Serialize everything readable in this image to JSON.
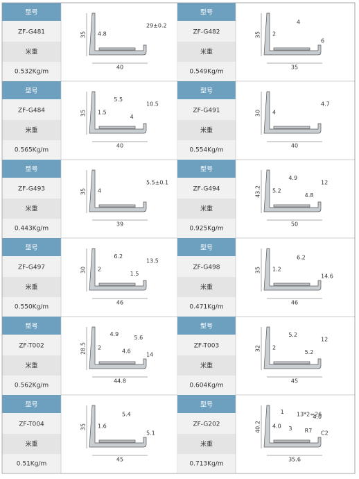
{
  "labels": {
    "model_header": "型号",
    "weight_header": "米重"
  },
  "items": [
    {
      "model": "ZF-G481",
      "weight": "0.532Kg/m",
      "dims": [
        "35",
        "4.8",
        "29±0.2",
        "40"
      ]
    },
    {
      "model": "ZF-G482",
      "weight": "0.549Kg/m",
      "dims": [
        "35",
        "2",
        "4",
        "6",
        "35"
      ]
    },
    {
      "model": "ZF-G484",
      "weight": "0.565Kg/m",
      "dims": [
        "35",
        "1.5",
        "5.5",
        "4",
        "10.5",
        "40"
      ]
    },
    {
      "model": "ZF-G491",
      "weight": "0.554Kg/m",
      "dims": [
        "30",
        "4",
        "4.7",
        "40"
      ]
    },
    {
      "model": "ZF-G493",
      "weight": "0.443Kg/m",
      "dims": [
        "35",
        "4",
        "5.5±0.1",
        "39"
      ]
    },
    {
      "model": "ZF-G494",
      "weight": "0.925Kg/m",
      "dims": [
        "43.2",
        "5.2",
        "4.9",
        "4.8",
        "12",
        "50"
      ]
    },
    {
      "model": "ZF-G497",
      "weight": "0.550Kg/m",
      "dims": [
        "30",
        "2",
        "6.2",
        "1.5",
        "13.5",
        "46"
      ]
    },
    {
      "model": "ZF-G498",
      "weight": "0.471Kg/m",
      "dims": [
        "35",
        "1.2",
        "6.2",
        "14.6",
        "46"
      ]
    },
    {
      "model": "ZF-T002",
      "weight": "0.562Kg/m",
      "dims": [
        "28.5",
        "2",
        "4.9",
        "4.6",
        "5.6",
        "14",
        "44.8"
      ]
    },
    {
      "model": "ZF-T003",
      "weight": "0.604Kg/m",
      "dims": [
        "32",
        "2",
        "5.2",
        "5.2",
        "12",
        "45"
      ]
    },
    {
      "model": "ZF-T004",
      "weight": "0.51Kg/m",
      "dims": [
        "35",
        "1.6",
        "5.4",
        "5.1",
        "45"
      ]
    },
    {
      "model": "ZF-G202",
      "weight": "0.713Kg/m",
      "dims": [
        "40.2",
        "4.0",
        "1",
        "3",
        "13*2=26",
        "R7",
        "4.0",
        "C2",
        "35.6"
      ]
    }
  ]
}
